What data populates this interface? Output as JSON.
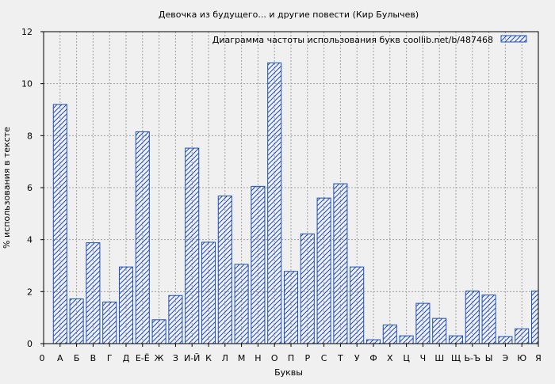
{
  "chart_data": {
    "type": "bar",
    "title": "Девочка из будущего... и другие повести (Кир Булычев)",
    "xlabel": "Буквы",
    "ylabel": "% использования в тексте",
    "ylim": [
      0,
      12
    ],
    "yticks": [
      "0",
      "2",
      "4",
      "6",
      "8",
      "10",
      "12"
    ],
    "x_start_label": "0",
    "categories": [
      "А",
      "Б",
      "В",
      "Г",
      "Д",
      "Е-Ё",
      "Ж",
      "З",
      "И-Й",
      "К",
      "Л",
      "М",
      "Н",
      "О",
      "П",
      "Р",
      "С",
      "Т",
      "У",
      "Ф",
      "Х",
      "Ц",
      "Ч",
      "Ш",
      "Щ",
      "Ь-Ъ",
      "Ы",
      "Э",
      "Ю",
      "Я"
    ],
    "series": [
      {
        "name": "Диаграмма частоты использования букв  coollib.net/b/487468",
        "values": [
          9.2,
          1.72,
          3.88,
          1.6,
          2.95,
          8.15,
          0.92,
          1.85,
          7.52,
          3.9,
          5.68,
          3.05,
          6.05,
          10.8,
          2.78,
          4.22,
          5.6,
          6.15,
          2.95,
          0.15,
          0.72,
          0.3,
          1.55,
          0.97,
          0.3,
          2.02,
          1.87,
          0.27,
          0.57,
          2.02
        ]
      }
    ],
    "grid": true,
    "legend_position": "top-right",
    "colors": {
      "bar_stroke": "#1f4fb4",
      "background": "#f0f0f0",
      "grid": "#a0a0a0"
    }
  }
}
